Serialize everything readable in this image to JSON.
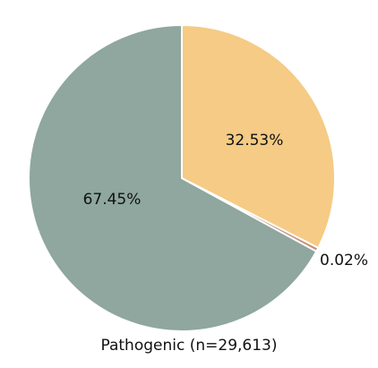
{
  "chart_data": {
    "type": "pie",
    "title": "Pathogenic (n=29,613)",
    "slices": [
      {
        "label": "32.53%",
        "value": 32.53,
        "color": "#F5CB85"
      },
      {
        "label": "0.02%",
        "value": 0.02,
        "color": "#C4907C"
      },
      {
        "label": "67.45%",
        "value": 67.45,
        "color": "#8FA79E"
      }
    ]
  }
}
